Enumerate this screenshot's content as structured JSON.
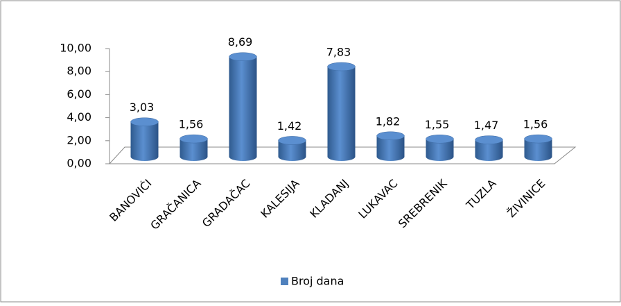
{
  "chart_data": {
    "type": "bar",
    "categories": [
      "BANOVIĆI",
      "GRAČANICA",
      "GRADAČAC",
      "KALESIJA",
      "KLADANJ",
      "LUKAVAC",
      "SREBRENIK",
      "TUZLA",
      "ŽIVINICE"
    ],
    "series": [
      {
        "name": "Broj dana",
        "color": "#4f81bd",
        "values": [
          3.03,
          1.56,
          8.69,
          1.42,
          7.83,
          1.82,
          1.55,
          1.47,
          1.56
        ],
        "value_labels": [
          "3,03",
          "1,56",
          "8,69",
          "1,42",
          "7,83",
          "1,82",
          "1,55",
          "1,47",
          "1,56"
        ]
      }
    ],
    "ylim": [
      0,
      10
    ],
    "yticks": [
      {
        "value": 0,
        "label": "0,00"
      },
      {
        "value": 2,
        "label": "2,00"
      },
      {
        "value": 4,
        "label": "4,00"
      },
      {
        "value": 6,
        "label": "6,00"
      },
      {
        "value": 8,
        "label": "8,00"
      },
      {
        "value": 10,
        "label": "10,00"
      }
    ],
    "legend": "bottom"
  }
}
